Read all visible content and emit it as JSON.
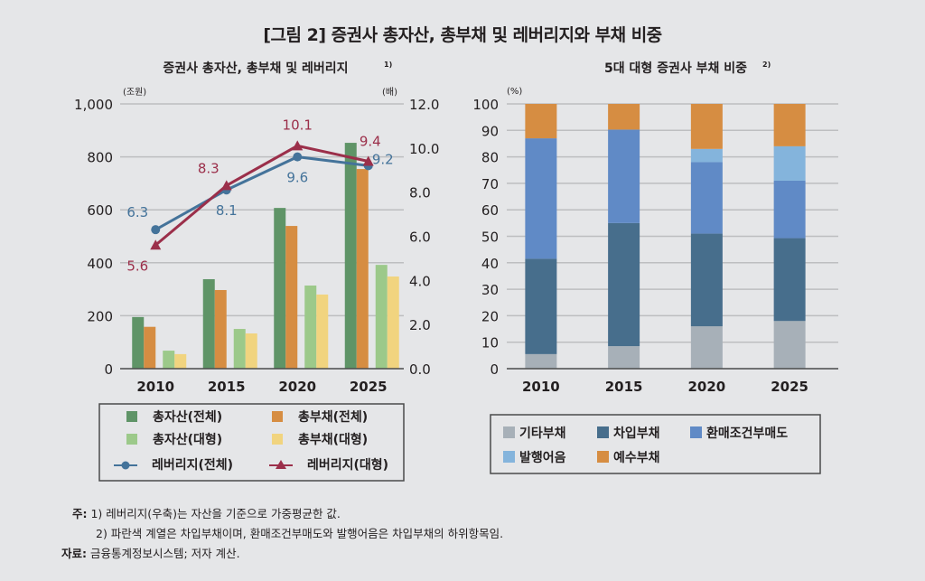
{
  "figure_title": "[그림 2] 증권사 총자산, 총부채 및 레버리지와 부채 비중",
  "notes": {
    "note_label": "주:",
    "note1": "1) 레버리지(우축)는 자산을 기준으로 가중평균한 값.",
    "note2": "2) 파란색 계열은 차입부채이며, 환매조건부매도와 발행어음은 차입부채의 하위항목임.",
    "source_label": "자료:",
    "source": "금융통계정보시스템; 저자 계산."
  },
  "chart_data": [
    {
      "type": "bar",
      "title": "증권사 총자산, 총부채 및 레버리지",
      "title_sup": "1)",
      "categories": [
        "2010",
        "2015",
        "2020",
        "2025"
      ],
      "ylabel": "(조원)",
      "y2label": "(배)",
      "ylim": [
        0,
        1000
      ],
      "y2lim": [
        0,
        12
      ],
      "yticks": [
        "0",
        "200",
        "400",
        "600",
        "800",
        "1,000"
      ],
      "y2ticks": [
        "0.0",
        "2.0",
        "4.0",
        "6.0",
        "8.0",
        "10.0",
        "12.0"
      ],
      "grid": true,
      "legend_position": "bottom",
      "series": [
        {
          "name": "총자산(전체)",
          "kind": "bar",
          "color": "#5f9467",
          "values": [
            195,
            338,
            607,
            853
          ]
        },
        {
          "name": "총부채(전체)",
          "kind": "bar",
          "color": "#d68d42",
          "values": [
            158,
            297,
            539,
            754
          ]
        },
        {
          "name": "총자산(대형)",
          "kind": "bar",
          "color": "#9cc98a",
          "values": [
            68,
            150,
            314,
            392
          ]
        },
        {
          "name": "총부채(대형)",
          "kind": "bar",
          "color": "#f1d47f",
          "values": [
            55,
            133,
            280,
            348
          ]
        },
        {
          "name": "레버리지(전체)",
          "kind": "line",
          "axis": "right",
          "marker": "circle",
          "color": "#44739a",
          "values": [
            6.3,
            8.1,
            9.6,
            9.2
          ],
          "labels": [
            "6.3",
            "8.1",
            "9.6",
            "9.2"
          ]
        },
        {
          "name": "레버리지(대형)",
          "kind": "line",
          "axis": "right",
          "marker": "triangle",
          "color": "#9b2f4a",
          "values": [
            5.6,
            8.3,
            10.1,
            9.4
          ],
          "labels": [
            "5.6",
            "8.3",
            "10.1",
            "9.4"
          ]
        }
      ]
    },
    {
      "type": "bar",
      "stacked": true,
      "title": "5대 대형 증권사 부채 비중",
      "title_sup": "2)",
      "categories": [
        "2010",
        "2015",
        "2020",
        "2025"
      ],
      "ylabel": "(%)",
      "ylim": [
        0,
        100
      ],
      "yticks": [
        "0",
        "10",
        "20",
        "30",
        "40",
        "50",
        "60",
        "70",
        "80",
        "90",
        "100"
      ],
      "grid": true,
      "legend_position": "bottom",
      "series": [
        {
          "name": "기타부채",
          "color": "#a7b0b8",
          "values": [
            5.5,
            8.5,
            16,
            18
          ]
        },
        {
          "name": "차입부채",
          "color": "#476e8c",
          "values": [
            36,
            46.5,
            35,
            31.3
          ]
        },
        {
          "name": "환매조건부매도",
          "color": "#608ac6",
          "values": [
            45.5,
            35.3,
            27,
            21.7
          ]
        },
        {
          "name": "발행어음",
          "color": "#84b4dc",
          "values": [
            0,
            0,
            5,
            13
          ]
        },
        {
          "name": "예수부채",
          "color": "#d68d42",
          "values": [
            13,
            9.7,
            17,
            16
          ]
        }
      ]
    }
  ]
}
